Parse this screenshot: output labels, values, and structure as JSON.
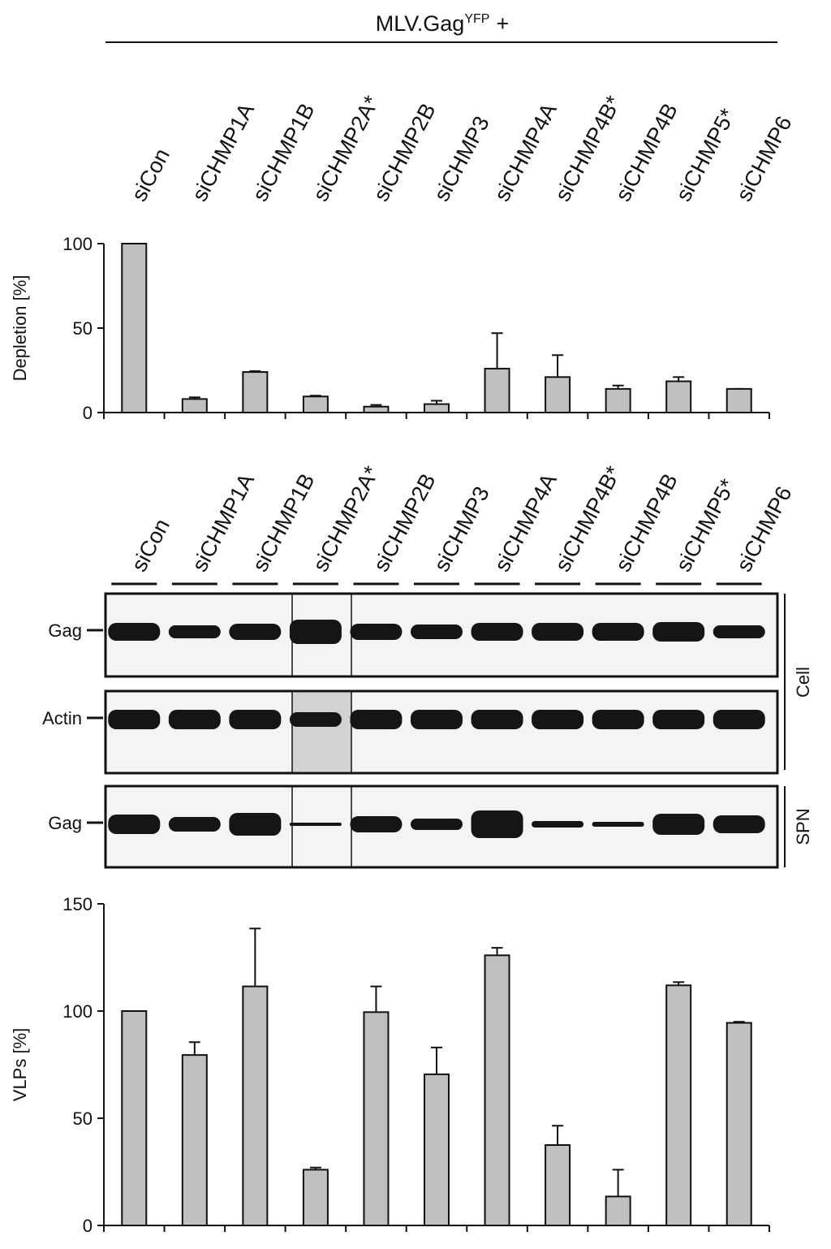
{
  "header": {
    "title": "MLV.Gag",
    "superscript": "YFP",
    "suffix": "+"
  },
  "chart_data": [
    {
      "type": "bar",
      "ylabel": "Depletion [%]",
      "categories": [
        "siCon",
        "siCHMP1A",
        "siCHMP1B",
        "siCHMP2A*",
        "siCHMP2B",
        "siCHMP3",
        "siCHMP4A",
        "siCHMP4B*",
        "siCHMP4B",
        "siCHMP5*",
        "siCHMP6"
      ],
      "values": [
        100,
        8,
        24,
        9.5,
        3.5,
        5,
        26,
        21,
        14,
        18.5,
        14
      ],
      "errors": [
        0,
        1,
        0.5,
        0.5,
        1,
        2,
        21,
        13,
        2,
        2.5,
        0
      ],
      "color": "#c0c0c0",
      "ylim": [
        0,
        100
      ],
      "yticks": [
        0,
        50,
        100
      ]
    },
    {
      "type": "bar",
      "ylabel": "VLPs [%]",
      "categories": [
        "siCon",
        "siCHMP1A",
        "siCHMP1B",
        "siCHMP2A*",
        "siCHMP2B",
        "siCHMP3",
        "siCHMP4A",
        "siCHMP4B*",
        "siCHMP4B",
        "siCHMP5*",
        "siCHMP6"
      ],
      "values": [
        100,
        79.5,
        111.5,
        26,
        99.5,
        70.5,
        126,
        37.5,
        13.5,
        112,
        94.5
      ],
      "errors": [
        0,
        6,
        27,
        1,
        12,
        12.5,
        3.5,
        9,
        12.5,
        1.5,
        0.5
      ],
      "color": "#c0c0c0",
      "ylim": [
        0,
        150
      ],
      "yticks": [
        0,
        50,
        100,
        150
      ]
    }
  ],
  "blot": {
    "rows": [
      "Gag",
      "Actin",
      "Gag"
    ],
    "groups": [
      "Cell",
      "SPN"
    ]
  }
}
